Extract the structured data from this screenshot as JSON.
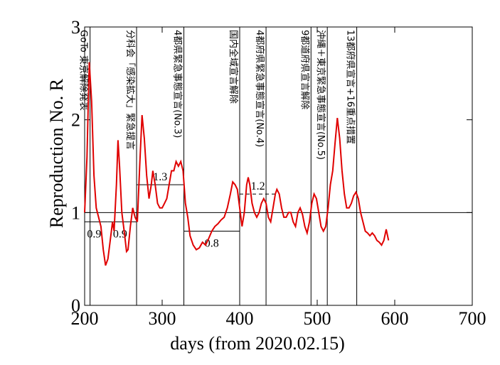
{
  "chart_data": {
    "type": "line",
    "xlabel": "days   (from 2020.02.15)",
    "ylabel": "Reproduction No.  R",
    "xlim": [
      200,
      700
    ],
    "ylim": [
      0,
      3
    ],
    "xticks": [
      200,
      300,
      400,
      500,
      600,
      700
    ],
    "yticks": [
      0,
      1,
      2,
      3
    ],
    "hlines": [
      1
    ],
    "series": [
      {
        "color": "#e00000",
        "x": [
          200,
          203,
          206,
          209,
          212,
          215,
          218,
          221,
          224,
          227,
          230,
          233,
          236,
          238,
          241,
          243,
          245,
          248,
          251,
          254,
          256,
          259,
          262,
          265,
          268,
          271,
          274,
          277,
          280,
          283,
          286,
          288,
          291,
          294,
          297,
          300,
          303,
          306,
          309,
          312,
          315,
          318,
          321,
          324,
          327,
          330,
          333,
          336,
          340,
          344,
          348,
          352,
          356,
          360,
          364,
          368,
          372,
          376,
          380,
          384,
          388,
          391,
          394,
          397,
          400,
          403,
          406,
          409,
          411,
          413,
          416,
          419,
          422,
          425,
          428,
          431,
          434,
          437,
          440,
          443,
          446,
          448,
          451,
          454,
          457,
          460,
          463,
          466,
          469,
          472,
          475,
          478,
          481,
          484,
          487,
          490,
          493,
          496,
          499,
          502,
          505,
          508,
          511,
          514,
          517,
          520,
          523,
          526,
          529,
          532,
          535,
          538,
          541,
          544,
          547,
          550,
          553,
          556,
          559,
          562,
          565,
          568,
          571,
          574,
          577,
          580,
          583,
          586,
          589,
          592
        ],
        "values": [
          1.0,
          1.6,
          2.62,
          2.2,
          1.4,
          1.05,
          0.95,
          0.85,
          0.6,
          0.43,
          0.5,
          0.7,
          0.9,
          0.8,
          1.3,
          1.78,
          1.5,
          1.0,
          0.8,
          0.58,
          0.6,
          0.85,
          1.05,
          0.95,
          0.9,
          1.5,
          2.05,
          1.8,
          1.4,
          1.15,
          1.3,
          1.45,
          1.3,
          1.1,
          1.05,
          1.05,
          1.1,
          1.15,
          1.3,
          1.45,
          1.45,
          1.55,
          1.5,
          1.55,
          1.45,
          1.1,
          0.95,
          0.75,
          0.65,
          0.6,
          0.62,
          0.68,
          0.65,
          0.72,
          0.8,
          0.85,
          0.88,
          0.92,
          0.95,
          1.05,
          1.2,
          1.33,
          1.3,
          1.25,
          1.05,
          0.85,
          1.0,
          1.3,
          1.38,
          1.3,
          1.1,
          1.0,
          0.95,
          1.0,
          1.1,
          1.15,
          1.1,
          0.95,
          0.9,
          1.05,
          1.2,
          1.25,
          1.2,
          1.05,
          0.95,
          0.95,
          1.0,
          1.0,
          0.9,
          0.85,
          1.0,
          1.05,
          0.98,
          0.85,
          0.78,
          0.9,
          1.1,
          1.2,
          1.15,
          1.0,
          0.85,
          0.8,
          0.85,
          1.05,
          1.3,
          1.45,
          1.75,
          2.02,
          1.8,
          1.45,
          1.2,
          1.05,
          1.05,
          1.1,
          1.18,
          1.22,
          1.15,
          1.0,
          0.9,
          0.8,
          0.78,
          0.75,
          0.78,
          0.75,
          0.7,
          0.68,
          0.65,
          0.7,
          0.82,
          0.7
        ]
      }
    ],
    "events": [
      {
        "x": 207,
        "label": "GoTo 東京解除発表"
      },
      {
        "x": 267,
        "label": "分科会「感染拡大」緊急提言"
      },
      {
        "x": 328,
        "label": "4都県緊急事態宣言(No.3)"
      },
      {
        "x": 400,
        "label": "国内全域宣言解除"
      },
      {
        "x": 434,
        "label": "4都府県緊急事態宣言(No.4)"
      },
      {
        "x": 492,
        "label": "9都道府県宣言解除"
      },
      {
        "x": 513,
        "label": "沖縄＋東京緊急事態宣言(No.5)"
      },
      {
        "x": 551,
        "label": "13都府県宣言+16重点措置"
      }
    ],
    "levels": [
      {
        "x": [
          200,
          230
        ],
        "y": 0.9,
        "label": "0.9"
      },
      {
        "x": [
          230,
          267
        ],
        "y": 0.9,
        "label": "0.9"
      },
      {
        "x": [
          267,
          328
        ],
        "y": 1.3,
        "label": "1.3"
      },
      {
        "x": [
          328,
          400
        ],
        "y": 0.8,
        "label": "0.8"
      },
      {
        "x": [
          400,
          447
        ],
        "y": 1.2,
        "label": "1.2",
        "dashed": true
      }
    ]
  }
}
